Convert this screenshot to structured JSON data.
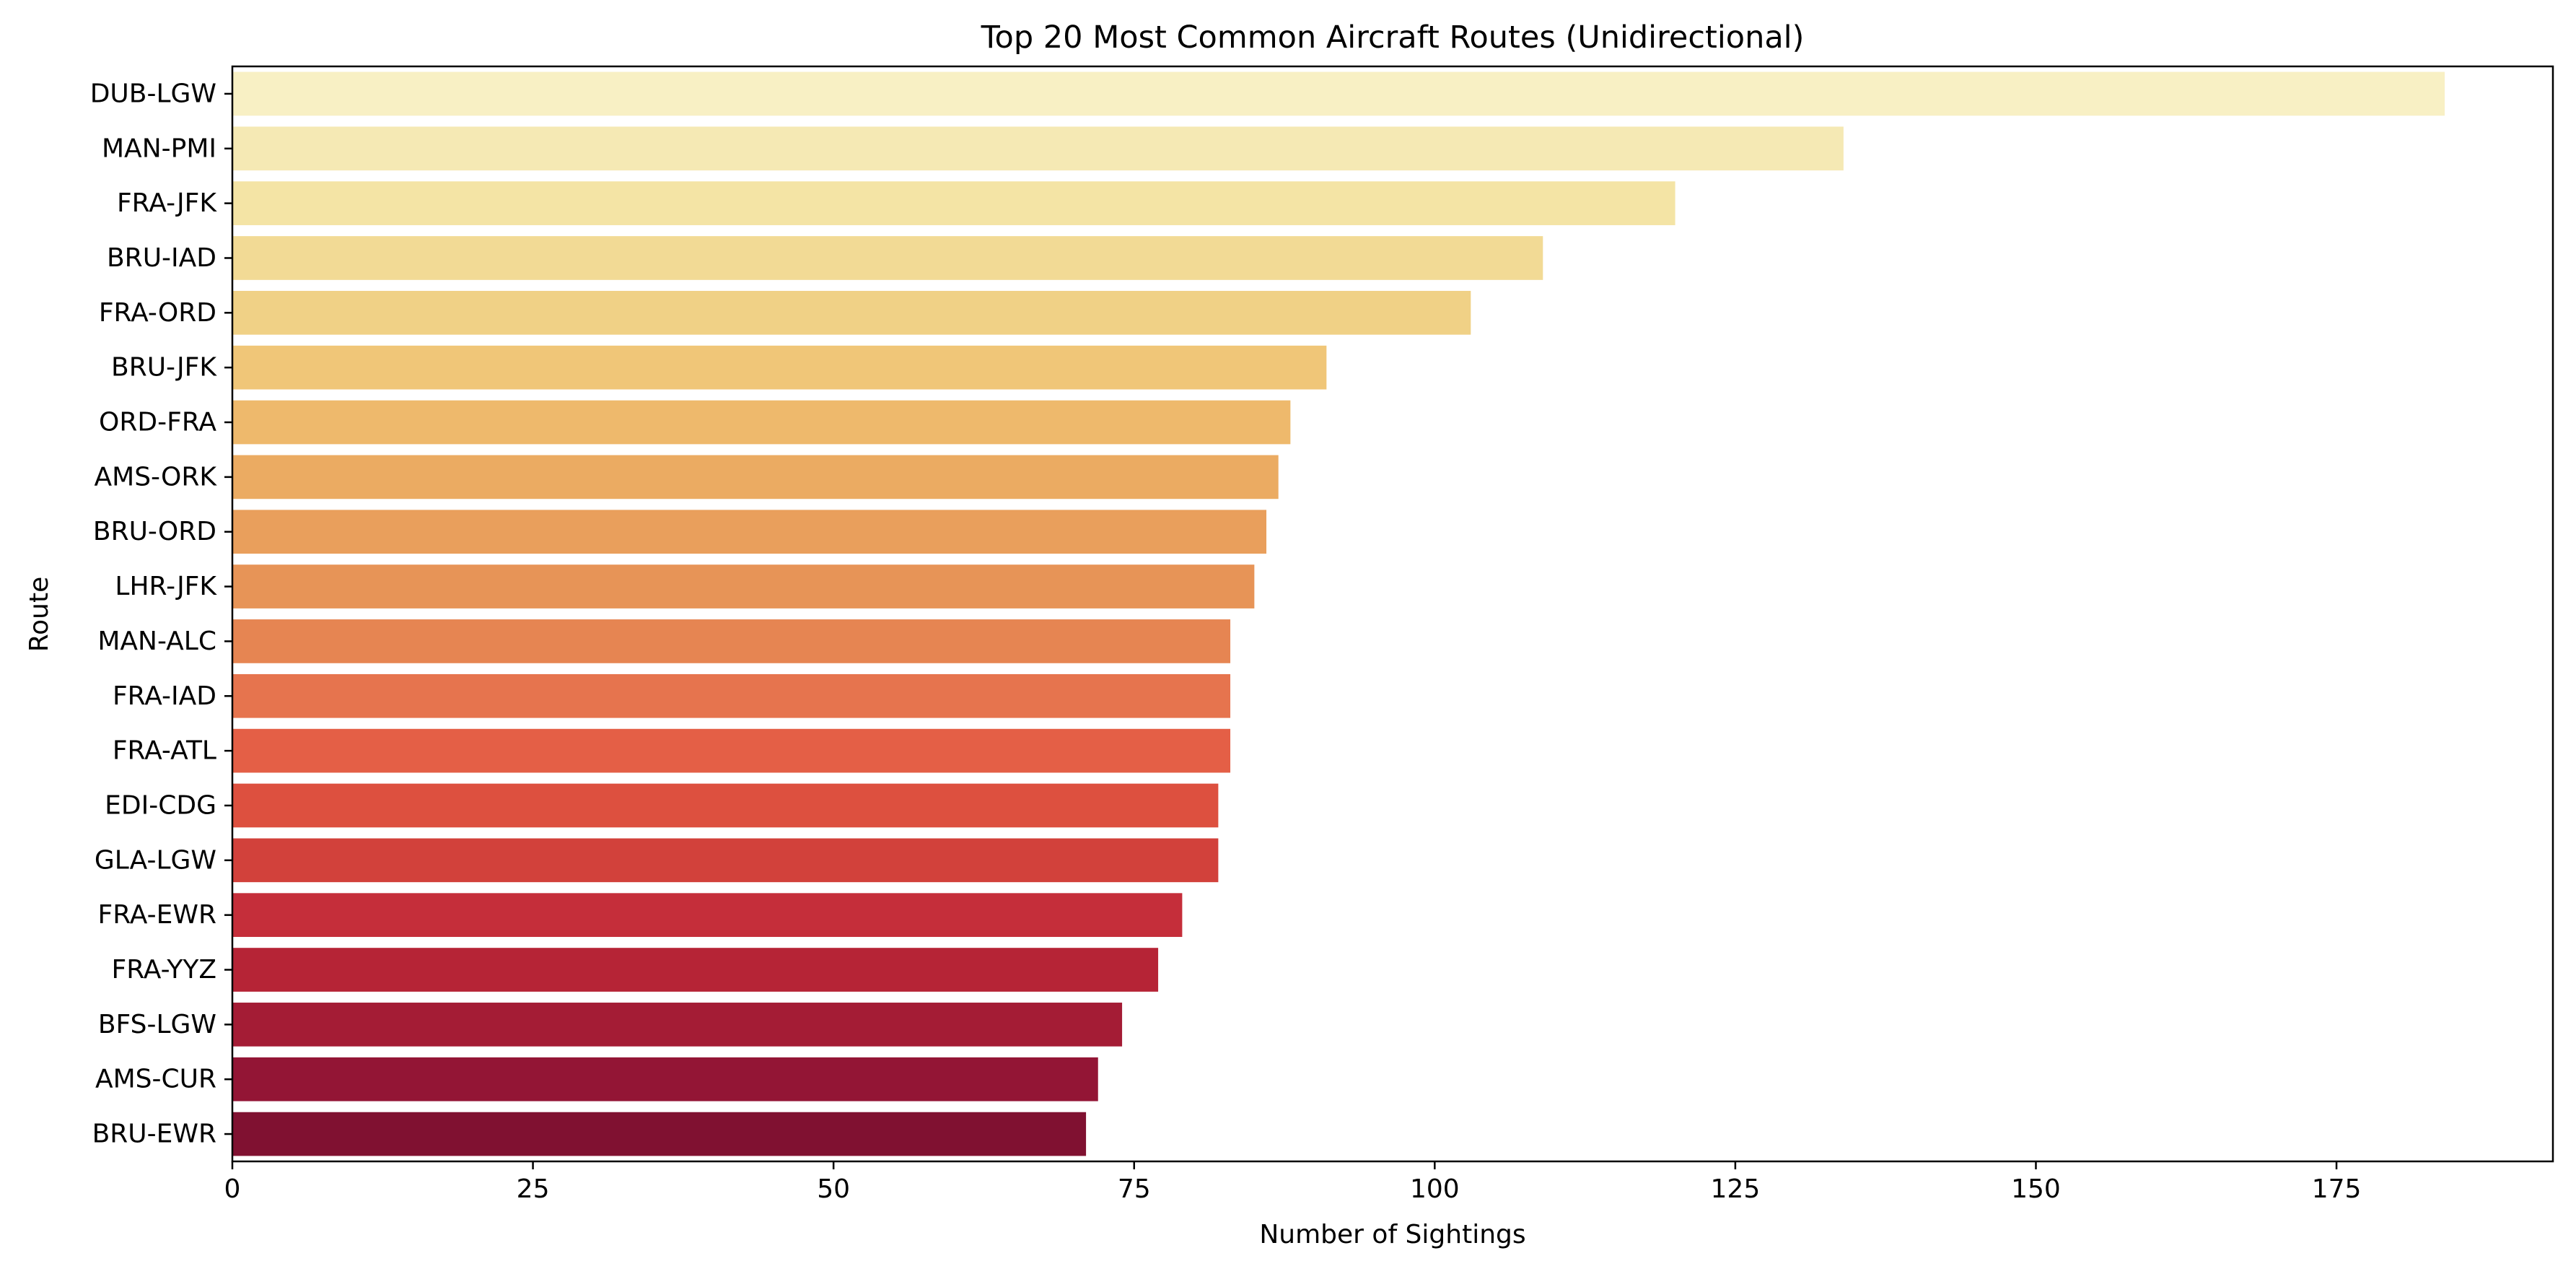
{
  "chart_data": {
    "type": "bar",
    "orientation": "horizontal",
    "title": "Top 20 Most Common Aircraft Routes (Unidirectional)",
    "xlabel": "Number of Sightings",
    "ylabel": "Route",
    "xlim": [
      0,
      193
    ],
    "xticks": [
      0,
      25,
      50,
      75,
      100,
      125,
      150,
      175
    ],
    "grid": false,
    "categories": [
      "DUB-LGW",
      "MAN-PMI",
      "FRA-JFK",
      "BRU-IAD",
      "FRA-ORD",
      "BRU-JFK",
      "ORD-FRA",
      "AMS-ORK",
      "BRU-ORD",
      "LHR-JFK",
      "MAN-ALC",
      "FRA-IAD",
      "FRA-ATL",
      "EDI-CDG",
      "GLA-LGW",
      "FRA-EWR",
      "FRA-YYZ",
      "BFS-LGW",
      "AMS-CUR",
      "BRU-EWR"
    ],
    "values": [
      184,
      134,
      120,
      109,
      103,
      91,
      88,
      87,
      86,
      85,
      83,
      83,
      83,
      82,
      82,
      79,
      77,
      74,
      72,
      71
    ],
    "colors": [
      "#f8f0c4",
      "#f5e9b4",
      "#f4e4a5",
      "#f2da95",
      "#f0d186",
      "#f0c678",
      "#eeb96c",
      "#ebab62",
      "#e99f5c",
      "#e79457",
      "#e68552",
      "#e6744e",
      "#e45f46",
      "#dd503f",
      "#d2413b",
      "#c52e3a",
      "#b62436",
      "#a41c35",
      "#931535",
      "#801131"
    ]
  }
}
